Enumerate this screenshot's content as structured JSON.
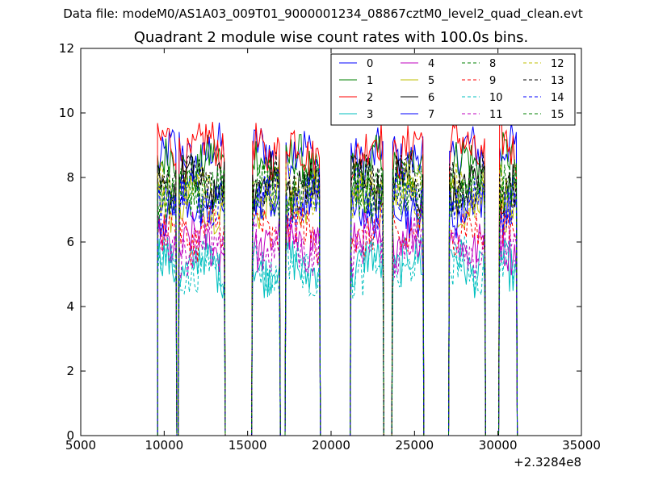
{
  "figure": {
    "suptitle": "Data file: modeM0/AS1A03_009T01_9000001234_08867cztM0_level2_quad_clean.evt"
  },
  "chart_data": {
    "type": "line",
    "title": "Quadrant 2 module wise count rates with 100.0s bins.",
    "xlabel": "",
    "ylabel": "",
    "xlim": [
      5000,
      35000
    ],
    "ylim": [
      0,
      12
    ],
    "x_ticks": [
      "5000",
      "10000",
      "15000",
      "20000",
      "25000",
      "30000",
      "35000"
    ],
    "y_ticks": [
      "0",
      "2",
      "4",
      "6",
      "8",
      "10",
      "12"
    ],
    "x_offset_label": "+2.3284e8",
    "grid": false,
    "legend_position": "top-right",
    "legend_columns": 4,
    "segments": [
      [
        9600,
        10700
      ],
      [
        10900,
        13600
      ],
      [
        15300,
        16900
      ],
      [
        17300,
        19300
      ],
      [
        21200,
        23100
      ],
      [
        23700,
        25500
      ],
      [
        27100,
        29200
      ],
      [
        30100,
        31100
      ]
    ],
    "series": [
      {
        "name": "0",
        "color": "#0000ff",
        "dash": "solid",
        "level": 8.7
      },
      {
        "name": "1",
        "color": "#008000",
        "dash": "solid",
        "level": 8.4
      },
      {
        "name": "2",
        "color": "#ff0000",
        "dash": "solid",
        "level": 8.9
      },
      {
        "name": "3",
        "color": "#00bfbf",
        "dash": "solid",
        "level": 5.3
      },
      {
        "name": "4",
        "color": "#bf00bf",
        "dash": "solid",
        "level": 6.0
      },
      {
        "name": "5",
        "color": "#bfbf00",
        "dash": "solid",
        "level": 7.3
      },
      {
        "name": "6",
        "color": "#000000",
        "dash": "solid",
        "level": 7.8
      },
      {
        "name": "7",
        "color": "#0000ff",
        "dash": "solid",
        "level": 7.1
      },
      {
        "name": "8",
        "color": "#008000",
        "dash": "dashed",
        "level": 7.6
      },
      {
        "name": "9",
        "color": "#ff0000",
        "dash": "dashed",
        "level": 6.3
      },
      {
        "name": "10",
        "color": "#00bfbf",
        "dash": "dashed",
        "level": 5.2
      },
      {
        "name": "11",
        "color": "#bf00bf",
        "dash": "dashed",
        "level": 5.9
      },
      {
        "name": "12",
        "color": "#bfbf00",
        "dash": "dashed",
        "level": 7.6
      },
      {
        "name": "13",
        "color": "#000000",
        "dash": "dashed",
        "level": 7.9
      },
      {
        "name": "14",
        "color": "#0000ff",
        "dash": "dashed",
        "level": 7.3
      },
      {
        "name": "15",
        "color": "#008000",
        "dash": "dashed",
        "level": 7.6
      }
    ]
  }
}
